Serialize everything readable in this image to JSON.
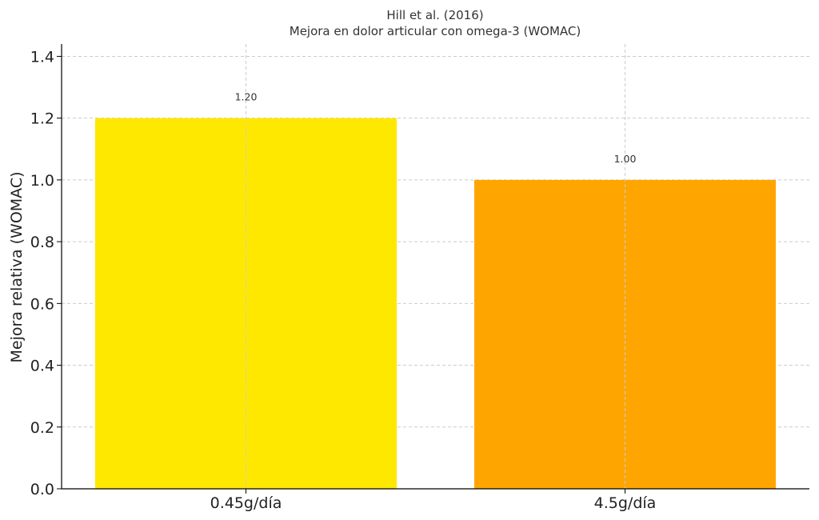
{
  "chart_data": {
    "type": "bar",
    "title": "Hill et al. (2016)",
    "subtitle": "Mejora en dolor articular con omega-3 (WOMAC)",
    "xlabel": "",
    "ylabel": "Mejora relativa (WOMAC)",
    "categories": [
      "0.45g/día",
      "4.5g/día"
    ],
    "values": [
      1.2,
      1.0
    ],
    "data_labels": [
      "1.20",
      "1.00"
    ],
    "colors": [
      "#FFE800",
      "#FFA500"
    ],
    "ylim": [
      0,
      1.44
    ],
    "yticks": [
      0.0,
      0.2,
      0.4,
      0.6,
      0.8,
      1.0,
      1.2,
      1.4
    ],
    "ytick_labels": [
      "0.0",
      "0.2",
      "0.4",
      "0.6",
      "0.8",
      "1.0",
      "1.2",
      "1.4"
    ],
    "grid": true,
    "legend": "none"
  }
}
